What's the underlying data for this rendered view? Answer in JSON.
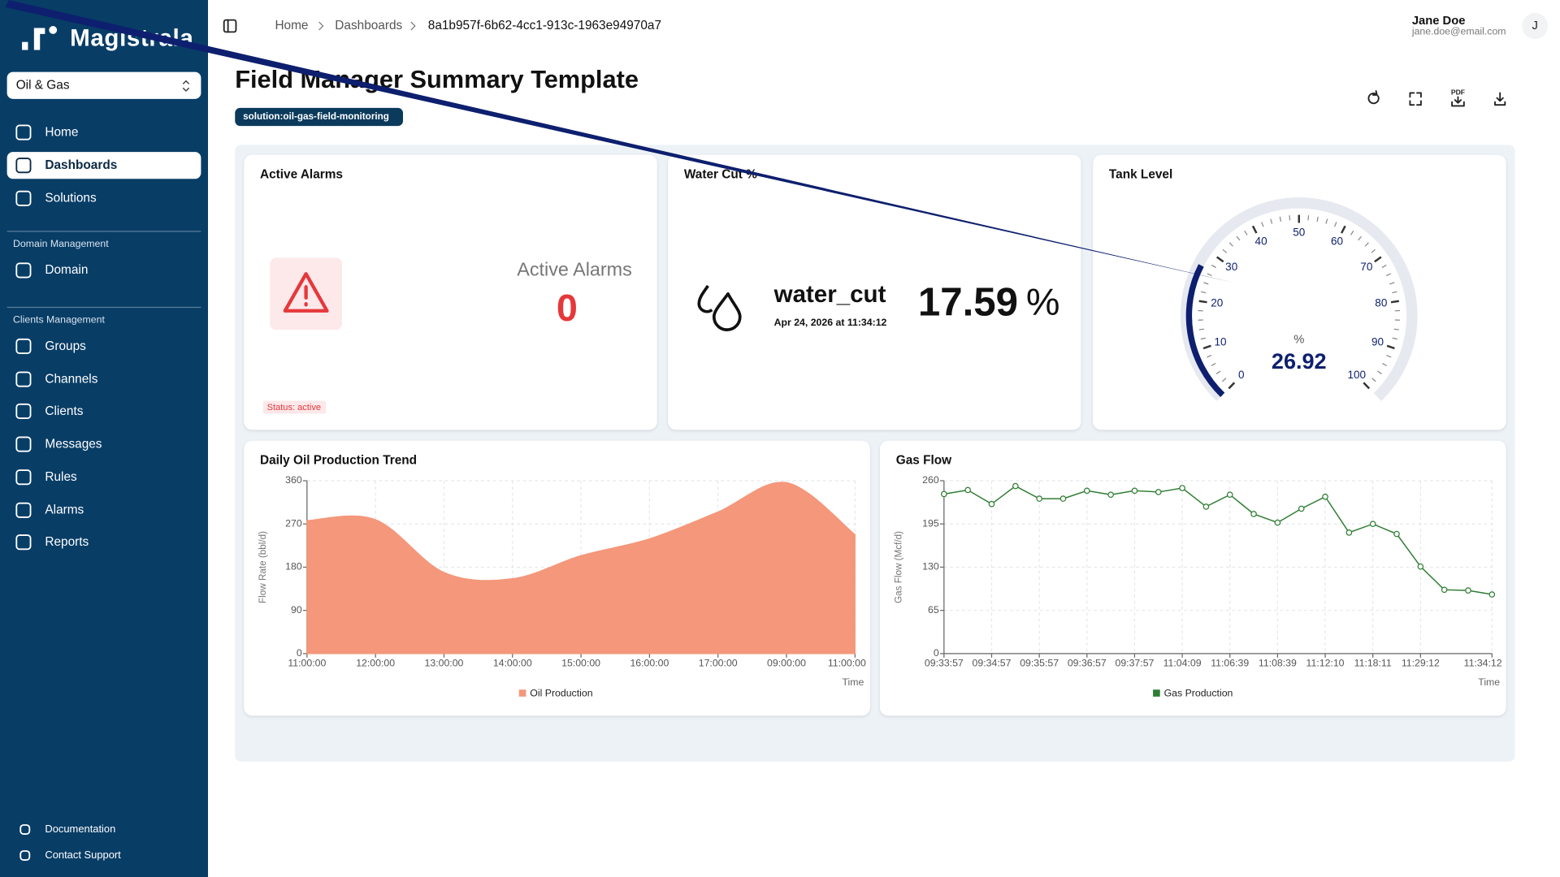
{
  "sidebar": {
    "brand": "Magistrala",
    "workspace": "Oil & Gas",
    "nav": [
      "Home",
      "Dashboards",
      "Solutions"
    ],
    "domain_section": {
      "title": "Domain Management",
      "items": [
        "Domain"
      ]
    },
    "clients_section": {
      "title": "Clients Management",
      "items": [
        "Groups",
        "Channels",
        "Clients",
        "Messages",
        "Rules",
        "Alarms",
        "Reports"
      ]
    },
    "footer": [
      "Documentation",
      "Contact Support"
    ]
  },
  "header": {
    "breadcrumb": [
      "Home",
      "Dashboards",
      "8a1b957f-6b62-4cc1-913c-1963e94970a7"
    ],
    "user": {
      "name": "Jane Doe",
      "email": "jane.doe@email.com",
      "initial": "J"
    }
  },
  "dashboard": {
    "title": "Field Manager Summary Template",
    "tag": "solution:oil-gas-field-monitoring",
    "pdf_button": "PDF"
  },
  "widgets": {
    "active_alarms": {
      "title": "Active Alarms",
      "label": "Active Alarms",
      "value": 0,
      "status": "Status: active"
    },
    "water_cut": {
      "title": "Water Cut %",
      "name": "water_cut",
      "timestamp": "Apr 24, 2026 at 11:34:12",
      "value": 17.59,
      "unit": "%"
    }
  },
  "chart_data": [
    {
      "type": "area",
      "title": "Daily Oil Production Trend",
      "categories": [
        "11:00:00",
        "12:00:00",
        "13:00:00",
        "14:00:00",
        "15:00:00",
        "16:00:00",
        "17:00:00",
        "09:00:00",
        "11:00:00"
      ],
      "series": [
        {
          "name": "Oil Production",
          "color": "#f4977a",
          "values": [
            277,
            279,
            169,
            156,
            204,
            239,
            295,
            356,
            248
          ]
        }
      ],
      "ylim": [
        0,
        360
      ],
      "yticks": [
        0,
        90,
        180,
        270,
        360
      ],
      "ylabel": "Flow Rate (bbl/d)",
      "xlabel": "Time",
      "grid": true
    },
    {
      "type": "line",
      "title": "Gas Flow",
      "categories": [
        "09:33:57",
        null,
        "09:34:57",
        null,
        "09:35:57",
        null,
        "09:36:57",
        null,
        "09:37:57",
        null,
        "11:04:09",
        null,
        "11:06:39",
        null,
        "11:08:39",
        null,
        "11:12:10",
        null,
        "11:18:11",
        null,
        "11:29:12",
        null,
        null,
        "11:34:12"
      ],
      "series": [
        {
          "name": "Gas Production",
          "color": "#2e7d32",
          "values": [
            240,
            246,
            225,
            252,
            233,
            233,
            245,
            239,
            245,
            243,
            249,
            221,
            239,
            210,
            197,
            218,
            236,
            182,
            195,
            180,
            131,
            96,
            95,
            89
          ]
        }
      ],
      "ylim": [
        0,
        260
      ],
      "yticks": [
        0,
        65,
        130,
        195,
        260
      ],
      "ylabel": "Gas Flow (Mcf/d)",
      "xlabel": "Time",
      "grid": true
    },
    {
      "type": "gauge",
      "title": "Tank Level",
      "value": 26.92,
      "unit": "%",
      "ylim": [
        0,
        100
      ],
      "yticks": [
        0,
        10,
        20,
        30,
        40,
        50,
        60,
        70,
        80,
        90,
        100
      ],
      "color": "#0d1f6e"
    }
  ]
}
